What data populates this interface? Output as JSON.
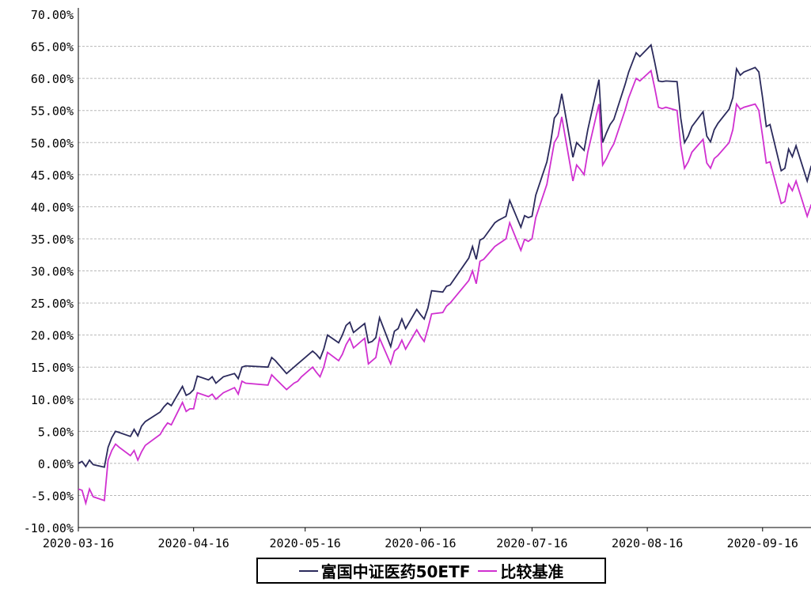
{
  "chart_data": {
    "type": "line",
    "title": "",
    "xlabel": "",
    "ylabel": "",
    "ylim": [
      -10,
      70
    ],
    "xlim": [
      "2020-03-16",
      "2020-09-30"
    ],
    "grid": true,
    "legend_position": "bottom",
    "y_ticks": [
      "70.00%",
      "65.00%",
      "60.00%",
      "55.00%",
      "50.00%",
      "45.00%",
      "40.00%",
      "35.00%",
      "30.00%",
      "25.00%",
      "20.00%",
      "15.00%",
      "10.00%",
      "5.00%",
      "0.00%",
      "-5.00%",
      "-10.00%"
    ],
    "x_ticks": [
      "2020-03-16",
      "2020-04-16",
      "2020-05-16",
      "2020-06-16",
      "2020-07-16",
      "2020-08-16",
      "2020-09-16"
    ],
    "series": [
      {
        "name": "富国中证医药50ETF",
        "color": "#2b2a5c",
        "points": [
          [
            "2020-03-16",
            0.0
          ],
          [
            "2020-03-17",
            0.3
          ],
          [
            "2020-03-18",
            -0.5
          ],
          [
            "2020-03-19",
            0.5
          ],
          [
            "2020-03-20",
            -0.2
          ],
          [
            "2020-03-23",
            -0.6
          ],
          [
            "2020-03-24",
            2.5
          ],
          [
            "2020-03-25",
            4.0
          ],
          [
            "2020-03-26",
            5.0
          ],
          [
            "2020-03-27",
            4.8
          ],
          [
            "2020-03-30",
            4.2
          ],
          [
            "2020-03-31",
            5.3
          ],
          [
            "2020-04-01",
            4.3
          ],
          [
            "2020-04-02",
            5.8
          ],
          [
            "2020-04-03",
            6.5
          ],
          [
            "2020-04-07",
            8.0
          ],
          [
            "2020-04-08",
            8.8
          ],
          [
            "2020-04-09",
            9.4
          ],
          [
            "2020-04-10",
            9.0
          ],
          [
            "2020-04-13",
            12.0
          ],
          [
            "2020-04-14",
            10.6
          ],
          [
            "2020-04-15",
            10.9
          ],
          [
            "2020-04-16",
            11.5
          ],
          [
            "2020-04-17",
            13.6
          ],
          [
            "2020-04-20",
            13.0
          ],
          [
            "2020-04-21",
            13.5
          ],
          [
            "2020-04-22",
            12.5
          ],
          [
            "2020-04-23",
            13.0
          ],
          [
            "2020-04-24",
            13.5
          ],
          [
            "2020-04-27",
            14.0
          ],
          [
            "2020-04-28",
            13.2
          ],
          [
            "2020-04-29",
            15.0
          ],
          [
            "2020-04-30",
            15.2
          ],
          [
            "2020-05-06",
            15.0
          ],
          [
            "2020-05-07",
            16.5
          ],
          [
            "2020-05-08",
            16.0
          ],
          [
            "2020-05-11",
            14.0
          ],
          [
            "2020-05-12",
            14.5
          ],
          [
            "2020-05-13",
            15.0
          ],
          [
            "2020-05-14",
            15.5
          ],
          [
            "2020-05-15",
            16.0
          ],
          [
            "2020-05-18",
            17.5
          ],
          [
            "2020-05-19",
            17.0
          ],
          [
            "2020-05-20",
            16.3
          ],
          [
            "2020-05-21",
            17.8
          ],
          [
            "2020-05-22",
            20.0
          ],
          [
            "2020-05-25",
            18.8
          ],
          [
            "2020-05-26",
            20.0
          ],
          [
            "2020-05-27",
            21.5
          ],
          [
            "2020-05-28",
            22.0
          ],
          [
            "2020-05-29",
            20.4
          ],
          [
            "2020-06-01",
            21.8
          ],
          [
            "2020-06-02",
            18.8
          ],
          [
            "2020-06-03",
            19.0
          ],
          [
            "2020-06-04",
            19.6
          ],
          [
            "2020-06-05",
            22.7
          ],
          [
            "2020-06-08",
            18.2
          ],
          [
            "2020-06-09",
            20.6
          ],
          [
            "2020-06-10",
            21.0
          ],
          [
            "2020-06-11",
            22.5
          ],
          [
            "2020-06-12",
            21.0
          ],
          [
            "2020-06-15",
            24.0
          ],
          [
            "2020-06-16",
            23.2
          ],
          [
            "2020-06-17",
            22.5
          ],
          [
            "2020-06-18",
            24.2
          ],
          [
            "2020-06-19",
            26.9
          ],
          [
            "2020-06-22",
            26.7
          ],
          [
            "2020-06-23",
            27.6
          ],
          [
            "2020-06-24",
            27.8
          ],
          [
            "2020-06-29",
            32.0
          ],
          [
            "2020-06-30",
            33.8
          ],
          [
            "2020-07-01",
            31.8
          ],
          [
            "2020-07-02",
            34.8
          ],
          [
            "2020-07-03",
            35.1
          ],
          [
            "2020-07-06",
            37.5
          ],
          [
            "2020-07-07",
            37.9
          ],
          [
            "2020-07-08",
            38.2
          ],
          [
            "2020-07-09",
            38.5
          ],
          [
            "2020-07-10",
            41.0
          ],
          [
            "2020-07-13",
            36.8
          ],
          [
            "2020-07-14",
            38.6
          ],
          [
            "2020-07-15",
            38.3
          ],
          [
            "2020-07-16",
            38.5
          ],
          [
            "2020-07-17",
            41.8
          ],
          [
            "2020-07-20",
            47.0
          ],
          [
            "2020-07-21",
            50.0
          ],
          [
            "2020-07-22",
            53.8
          ],
          [
            "2020-07-23",
            54.6
          ],
          [
            "2020-07-24",
            57.6
          ],
          [
            "2020-07-27",
            47.7
          ],
          [
            "2020-07-28",
            50.0
          ],
          [
            "2020-07-29",
            49.4
          ],
          [
            "2020-07-30",
            48.8
          ],
          [
            "2020-07-31",
            52.0
          ],
          [
            "2020-08-03",
            59.8
          ],
          [
            "2020-08-04",
            50.0
          ],
          [
            "2020-08-05",
            51.5
          ],
          [
            "2020-08-06",
            52.8
          ],
          [
            "2020-08-07",
            53.6
          ],
          [
            "2020-08-10",
            59.0
          ],
          [
            "2020-08-11",
            61.0
          ],
          [
            "2020-08-12",
            62.5
          ],
          [
            "2020-08-13",
            64.0
          ],
          [
            "2020-08-14",
            63.4
          ],
          [
            "2020-08-17",
            65.2
          ],
          [
            "2020-08-18",
            62.5
          ],
          [
            "2020-08-19",
            59.6
          ],
          [
            "2020-08-20",
            59.5
          ],
          [
            "2020-08-21",
            59.6
          ],
          [
            "2020-08-24",
            59.5
          ],
          [
            "2020-08-25",
            53.8
          ],
          [
            "2020-08-26",
            50.0
          ],
          [
            "2020-08-27",
            51.0
          ],
          [
            "2020-08-28",
            52.5
          ],
          [
            "2020-08-31",
            54.8
          ],
          [
            "2020-09-01",
            51.0
          ],
          [
            "2020-09-02",
            50.1
          ],
          [
            "2020-09-03",
            52.0
          ],
          [
            "2020-09-04",
            53.0
          ],
          [
            "2020-09-07",
            55.2
          ],
          [
            "2020-09-08",
            57.0
          ],
          [
            "2020-09-09",
            61.5
          ],
          [
            "2020-09-10",
            60.5
          ],
          [
            "2020-09-11",
            61.0
          ],
          [
            "2020-09-14",
            61.7
          ],
          [
            "2020-09-15",
            61.0
          ],
          [
            "2020-09-16",
            57.0
          ],
          [
            "2020-09-17",
            52.5
          ],
          [
            "2020-09-18",
            52.8
          ],
          [
            "2020-09-21",
            45.6
          ],
          [
            "2020-09-22",
            46.0
          ],
          [
            "2020-09-23",
            49.0
          ],
          [
            "2020-09-24",
            47.8
          ],
          [
            "2020-09-25",
            49.5
          ],
          [
            "2020-09-28",
            44.0
          ],
          [
            "2020-09-29",
            46.2
          ],
          [
            "2020-09-30",
            45.5
          ]
        ]
      },
      {
        "name": "比较基准",
        "color": "#d030d0",
        "points": [
          [
            "2020-03-16",
            -4.0
          ],
          [
            "2020-03-17",
            -4.2
          ],
          [
            "2020-03-18",
            -6.2
          ],
          [
            "2020-03-19",
            -4.0
          ],
          [
            "2020-03-20",
            -5.2
          ],
          [
            "2020-03-23",
            -5.8
          ],
          [
            "2020-03-24",
            0.5
          ],
          [
            "2020-03-25",
            2.0
          ],
          [
            "2020-03-26",
            3.0
          ],
          [
            "2020-03-27",
            2.5
          ],
          [
            "2020-03-30",
            1.2
          ],
          [
            "2020-03-31",
            2.0
          ],
          [
            "2020-04-01",
            0.5
          ],
          [
            "2020-04-02",
            1.8
          ],
          [
            "2020-04-03",
            2.8
          ],
          [
            "2020-04-07",
            4.5
          ],
          [
            "2020-04-08",
            5.5
          ],
          [
            "2020-04-09",
            6.3
          ],
          [
            "2020-04-10",
            6.0
          ],
          [
            "2020-04-13",
            9.5
          ],
          [
            "2020-04-14",
            8.1
          ],
          [
            "2020-04-15",
            8.5
          ],
          [
            "2020-04-16",
            8.5
          ],
          [
            "2020-04-17",
            11.0
          ],
          [
            "2020-04-20",
            10.4
          ],
          [
            "2020-04-21",
            10.8
          ],
          [
            "2020-04-22",
            10.0
          ],
          [
            "2020-04-23",
            10.5
          ],
          [
            "2020-04-24",
            11.0
          ],
          [
            "2020-04-27",
            11.8
          ],
          [
            "2020-04-28",
            10.8
          ],
          [
            "2020-04-29",
            12.8
          ],
          [
            "2020-04-30",
            12.5
          ],
          [
            "2020-05-06",
            12.2
          ],
          [
            "2020-05-07",
            13.8
          ],
          [
            "2020-05-08",
            13.2
          ],
          [
            "2020-05-11",
            11.5
          ],
          [
            "2020-05-12",
            12.0
          ],
          [
            "2020-05-13",
            12.5
          ],
          [
            "2020-05-14",
            12.8
          ],
          [
            "2020-05-15",
            13.5
          ],
          [
            "2020-05-18",
            15.0
          ],
          [
            "2020-05-19",
            14.2
          ],
          [
            "2020-05-20",
            13.5
          ],
          [
            "2020-05-21",
            15.0
          ],
          [
            "2020-05-22",
            17.3
          ],
          [
            "2020-05-25",
            16.0
          ],
          [
            "2020-05-26",
            17.0
          ],
          [
            "2020-05-27",
            18.5
          ],
          [
            "2020-05-28",
            19.5
          ],
          [
            "2020-05-29",
            18.0
          ],
          [
            "2020-06-01",
            19.5
          ],
          [
            "2020-06-02",
            15.5
          ],
          [
            "2020-06-03",
            16.0
          ],
          [
            "2020-06-04",
            16.5
          ],
          [
            "2020-06-05",
            19.5
          ],
          [
            "2020-06-08",
            15.5
          ],
          [
            "2020-06-09",
            17.5
          ],
          [
            "2020-06-10",
            18.0
          ],
          [
            "2020-06-11",
            19.2
          ],
          [
            "2020-06-12",
            17.8
          ],
          [
            "2020-06-15",
            20.8
          ],
          [
            "2020-06-16",
            19.8
          ],
          [
            "2020-06-17",
            19.0
          ],
          [
            "2020-06-18",
            21.0
          ],
          [
            "2020-06-19",
            23.3
          ],
          [
            "2020-06-22",
            23.5
          ],
          [
            "2020-06-23",
            24.5
          ],
          [
            "2020-06-24",
            25.0
          ],
          [
            "2020-06-29",
            28.5
          ],
          [
            "2020-06-30",
            30.0
          ],
          [
            "2020-07-01",
            28.0
          ],
          [
            "2020-07-02",
            31.5
          ],
          [
            "2020-07-03",
            31.8
          ],
          [
            "2020-07-06",
            33.8
          ],
          [
            "2020-07-07",
            34.2
          ],
          [
            "2020-07-08",
            34.6
          ],
          [
            "2020-07-09",
            35.0
          ],
          [
            "2020-07-10",
            37.5
          ],
          [
            "2020-07-13",
            33.2
          ],
          [
            "2020-07-14",
            34.9
          ],
          [
            "2020-07-15",
            34.6
          ],
          [
            "2020-07-16",
            35.0
          ],
          [
            "2020-07-17",
            38.3
          ],
          [
            "2020-07-20",
            43.5
          ],
          [
            "2020-07-21",
            46.8
          ],
          [
            "2020-07-22",
            50.0
          ],
          [
            "2020-07-23",
            51.0
          ],
          [
            "2020-07-24",
            54.0
          ],
          [
            "2020-07-27",
            44.0
          ],
          [
            "2020-07-28",
            46.5
          ],
          [
            "2020-07-29",
            45.8
          ],
          [
            "2020-07-30",
            45.0
          ],
          [
            "2020-07-31",
            48.5
          ],
          [
            "2020-08-03",
            56.0
          ],
          [
            "2020-08-04",
            46.5
          ],
          [
            "2020-08-05",
            47.5
          ],
          [
            "2020-08-06",
            48.8
          ],
          [
            "2020-08-07",
            49.8
          ],
          [
            "2020-08-10",
            55.0
          ],
          [
            "2020-08-11",
            57.0
          ],
          [
            "2020-08-12",
            58.5
          ],
          [
            "2020-08-13",
            60.0
          ],
          [
            "2020-08-14",
            59.6
          ],
          [
            "2020-08-17",
            61.2
          ],
          [
            "2020-08-18",
            58.5
          ],
          [
            "2020-08-19",
            55.5
          ],
          [
            "2020-08-20",
            55.3
          ],
          [
            "2020-08-21",
            55.5
          ],
          [
            "2020-08-24",
            55.0
          ],
          [
            "2020-08-25",
            49.5
          ],
          [
            "2020-08-26",
            46.0
          ],
          [
            "2020-08-27",
            47.0
          ],
          [
            "2020-08-28",
            48.5
          ],
          [
            "2020-08-31",
            50.5
          ],
          [
            "2020-09-01",
            46.8
          ],
          [
            "2020-09-02",
            46.0
          ],
          [
            "2020-09-03",
            47.5
          ],
          [
            "2020-09-04",
            48.0
          ],
          [
            "2020-09-07",
            50.0
          ],
          [
            "2020-09-08",
            52.0
          ],
          [
            "2020-09-09",
            56.0
          ],
          [
            "2020-09-10",
            55.2
          ],
          [
            "2020-09-11",
            55.5
          ],
          [
            "2020-09-14",
            56.0
          ],
          [
            "2020-09-15",
            55.0
          ],
          [
            "2020-09-16",
            51.0
          ],
          [
            "2020-09-17",
            46.8
          ],
          [
            "2020-09-18",
            47.0
          ],
          [
            "2020-09-21",
            40.5
          ],
          [
            "2020-09-22",
            40.8
          ],
          [
            "2020-09-23",
            43.5
          ],
          [
            "2020-09-24",
            42.5
          ],
          [
            "2020-09-25",
            44.0
          ],
          [
            "2020-09-28",
            38.5
          ],
          [
            "2020-09-29",
            40.2
          ],
          [
            "2020-09-30",
            39.5
          ]
        ]
      }
    ]
  }
}
